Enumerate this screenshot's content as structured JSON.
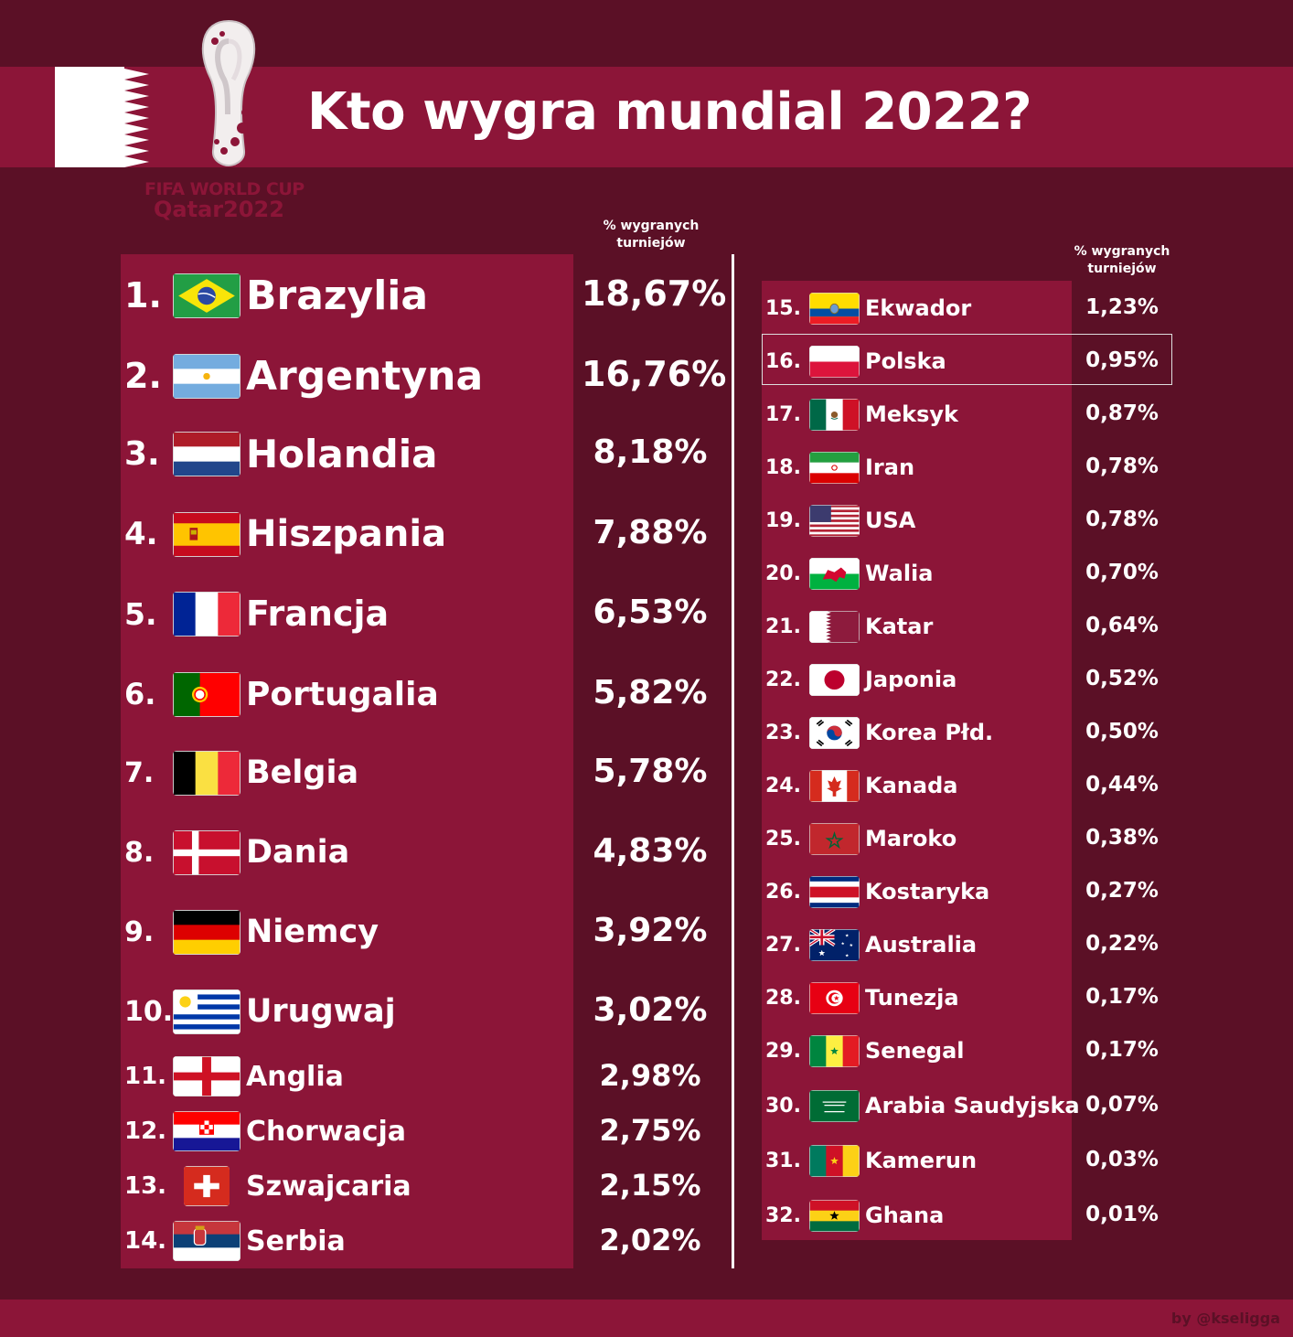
{
  "title": "Kto wygra mundial 2022?",
  "logo_text": {
    "line1": "FIFA WORLD CUP",
    "line2": "Qatar2022"
  },
  "column_header": {
    "line1": "% wygranych",
    "line2": "turniejów"
  },
  "credit": "by @kseligga",
  "colors": {
    "background": "#5b1026",
    "panel": "#8c1538",
    "text": "#ffffff"
  },
  "chart_data": {
    "type": "table",
    "title": "Kto wygra mundial 2022?",
    "columns": [
      "rank",
      "country",
      "% wygranych turniejów"
    ],
    "rows": [
      {
        "rank": "1.",
        "country": "Brazylia",
        "value": "18,67%",
        "flag": "brazil-flag-icon"
      },
      {
        "rank": "2.",
        "country": "Argentyna",
        "value": "16,76%",
        "flag": "argentina-flag-icon"
      },
      {
        "rank": "3.",
        "country": "Holandia",
        "value": "8,18%",
        "flag": "netherlands-flag-icon"
      },
      {
        "rank": "4.",
        "country": "Hiszpania",
        "value": "7,88%",
        "flag": "spain-flag-icon"
      },
      {
        "rank": "5.",
        "country": "Francja",
        "value": "6,53%",
        "flag": "france-flag-icon"
      },
      {
        "rank": "6.",
        "country": "Portugalia",
        "value": "5,82%",
        "flag": "portugal-flag-icon"
      },
      {
        "rank": "7.",
        "country": "Belgia",
        "value": "5,78%",
        "flag": "belgium-flag-icon"
      },
      {
        "rank": "8.",
        "country": "Dania",
        "value": "4,83%",
        "flag": "denmark-flag-icon"
      },
      {
        "rank": "9.",
        "country": "Niemcy",
        "value": "3,92%",
        "flag": "germany-flag-icon"
      },
      {
        "rank": "10.",
        "country": "Urugwaj",
        "value": "3,02%",
        "flag": "uruguay-flag-icon"
      },
      {
        "rank": "11.",
        "country": "Anglia",
        "value": "2,98%",
        "flag": "england-flag-icon"
      },
      {
        "rank": "12.",
        "country": "Chorwacja",
        "value": "2,75%",
        "flag": "croatia-flag-icon"
      },
      {
        "rank": "13.",
        "country": "Szwajcaria",
        "value": "2,15%",
        "flag": "switzerland-flag-icon"
      },
      {
        "rank": "14.",
        "country": "Serbia",
        "value": "2,02%",
        "flag": "serbia-flag-icon"
      },
      {
        "rank": "15.",
        "country": "Ekwador",
        "value": "1,23%",
        "flag": "ecuador-flag-icon"
      },
      {
        "rank": "16.",
        "country": "Polska",
        "value": "0,95%",
        "flag": "poland-flag-icon",
        "highlight": true
      },
      {
        "rank": "17.",
        "country": "Meksyk",
        "value": "0,87%",
        "flag": "mexico-flag-icon"
      },
      {
        "rank": "18.",
        "country": "Iran",
        "value": "0,78%",
        "flag": "iran-flag-icon"
      },
      {
        "rank": "19.",
        "country": "USA",
        "value": "0,78%",
        "flag": "usa-flag-icon"
      },
      {
        "rank": "20.",
        "country": "Walia",
        "value": "0,70%",
        "flag": "wales-flag-icon"
      },
      {
        "rank": "21.",
        "country": "Katar",
        "value": "0,64%",
        "flag": "qatar-flag-icon"
      },
      {
        "rank": "22.",
        "country": "Japonia",
        "value": "0,52%",
        "flag": "japan-flag-icon"
      },
      {
        "rank": "23.",
        "country": "Korea Płd.",
        "value": "0,50%",
        "flag": "south-korea-flag-icon"
      },
      {
        "rank": "24.",
        "country": "Kanada",
        "value": "0,44%",
        "flag": "canada-flag-icon"
      },
      {
        "rank": "25.",
        "country": "Maroko",
        "value": "0,38%",
        "flag": "morocco-flag-icon"
      },
      {
        "rank": "26.",
        "country": "Kostaryka",
        "value": "0,27%",
        "flag": "costa-rica-flag-icon"
      },
      {
        "rank": "27.",
        "country": "Australia",
        "value": "0,22%",
        "flag": "australia-flag-icon"
      },
      {
        "rank": "28.",
        "country": "Tunezja",
        "value": "0,17%",
        "flag": "tunisia-flag-icon"
      },
      {
        "rank": "29.",
        "country": "Senegal",
        "value": "0,17%",
        "flag": "senegal-flag-icon"
      },
      {
        "rank": "30.",
        "country": "Arabia Saudyjska",
        "value": "0,07%",
        "flag": "saudi-arabia-flag-icon"
      },
      {
        "rank": "31.",
        "country": "Kamerun",
        "value": "0,03%",
        "flag": "cameroon-flag-icon"
      },
      {
        "rank": "32.",
        "country": "Ghana",
        "value": "0,01%",
        "flag": "ghana-flag-icon"
      }
    ]
  }
}
